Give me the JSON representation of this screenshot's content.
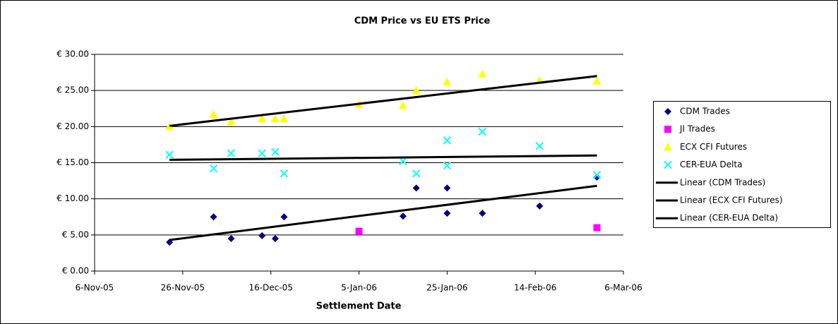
{
  "chart_data": {
    "type": "scatter",
    "title": "CDM Price vs EU ETS Price",
    "x_label": "Settlement Date",
    "xlim": [
      "2005-11-06",
      "2006-03-06"
    ],
    "xticks": [
      {
        "value": "2005-11-06",
        "label": "6-Nov-05"
      },
      {
        "value": "2005-11-26",
        "label": "26-Nov-05"
      },
      {
        "value": "2005-12-16",
        "label": "16-Dec-05"
      },
      {
        "value": "2006-01-05",
        "label": "5-Jan-06"
      },
      {
        "value": "2006-01-25",
        "label": "25-Jan-06"
      },
      {
        "value": "2006-02-14",
        "label": "14-Feb-06"
      },
      {
        "value": "2006-03-06",
        "label": "6-Mar-06"
      }
    ],
    "ylim": [
      0,
      30
    ],
    "yticks": [
      {
        "value": 0,
        "label": "€ 0.00"
      },
      {
        "value": 5,
        "label": "€ 5.00"
      },
      {
        "value": 10,
        "label": "€ 10.00"
      },
      {
        "value": 15,
        "label": "€ 15.00"
      },
      {
        "value": 20,
        "label": "€ 20.00"
      },
      {
        "value": 25,
        "label": "€ 25.00"
      },
      {
        "value": 30,
        "label": "€ 30.00"
      }
    ],
    "grid": true,
    "legend": "right",
    "series": [
      {
        "name": "CDM Trades",
        "color": "#000080",
        "marker": "diamond",
        "x": [
          "2005-11-23",
          "2005-12-03",
          "2005-12-07",
          "2005-12-14",
          "2005-12-17",
          "2005-12-19",
          "2006-01-15",
          "2006-01-18",
          "2006-01-25",
          "2006-01-25",
          "2006-02-02",
          "2006-02-15",
          "2006-02-28"
        ],
        "values": [
          4.0,
          7.5,
          4.5,
          4.9,
          4.5,
          7.5,
          7.6,
          11.5,
          11.5,
          8.0,
          8.0,
          9.0,
          13.0
        ]
      },
      {
        "name": "JI Trades",
        "color": "#ff00ff",
        "marker": "square",
        "x": [
          "2006-01-05",
          "2006-02-28"
        ],
        "values": [
          5.5,
          6.0
        ]
      },
      {
        "name": "ECX CFI Futures",
        "color": "#ffff00",
        "marker": "triangle",
        "x": [
          "2005-11-23",
          "2005-12-03",
          "2005-12-07",
          "2005-12-14",
          "2005-12-17",
          "2005-12-19",
          "2006-01-05",
          "2006-01-15",
          "2006-01-18",
          "2006-01-25",
          "2006-02-02",
          "2006-02-15",
          "2006-02-28"
        ],
        "values": [
          20.0,
          21.7,
          20.7,
          21.1,
          21.1,
          21.1,
          23.1,
          22.9,
          25.0,
          26.2,
          27.3,
          26.4,
          26.3
        ]
      },
      {
        "name": "CER-EUA Delta",
        "color": "#00ffff",
        "marker": "x",
        "x": [
          "2005-11-23",
          "2005-12-03",
          "2005-12-07",
          "2005-12-14",
          "2005-12-17",
          "2005-12-19",
          "2006-01-15",
          "2006-01-18",
          "2006-01-25",
          "2006-01-25",
          "2006-02-02",
          "2006-02-15",
          "2006-02-28"
        ],
        "values": [
          16.1,
          14.2,
          16.3,
          16.3,
          16.5,
          13.5,
          15.2,
          13.5,
          18.1,
          14.6,
          19.3,
          17.3,
          13.3
        ]
      },
      {
        "name": "Linear (CDM Trades)",
        "color": "#000000",
        "marker": "line",
        "x": [
          "2005-11-23",
          "2006-02-28"
        ],
        "values": [
          4.3,
          11.8
        ]
      },
      {
        "name": "Linear (ECX CFI Futures)",
        "color": "#000000",
        "marker": "line",
        "x": [
          "2005-11-23",
          "2006-02-28"
        ],
        "values": [
          20.1,
          27.0
        ]
      },
      {
        "name": "Linear (CER-EUA Delta)",
        "color": "#000000",
        "marker": "line",
        "x": [
          "2005-11-23",
          "2006-02-28"
        ],
        "values": [
          15.4,
          16.0
        ]
      }
    ]
  }
}
